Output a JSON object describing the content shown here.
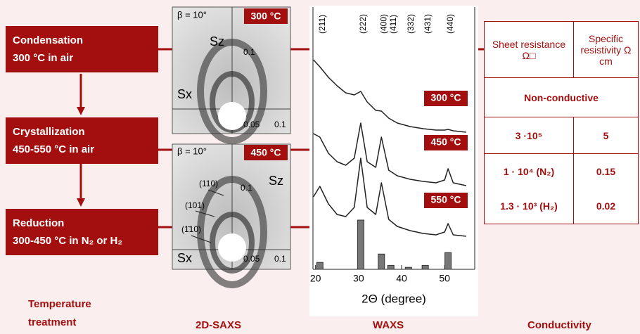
{
  "process": {
    "steps": [
      {
        "title": "Condensation",
        "condition": "300 °C in air"
      },
      {
        "title": "Crystallization",
        "condition": "450-550 °C in air"
      },
      {
        "title": "Reduction",
        "condition": "300-450 °C in N₂ or H₂"
      }
    ]
  },
  "saxs": {
    "panels": [
      {
        "beta": "β = 10°",
        "temperature": "300 °C",
        "sz": "Sz",
        "sx": "Sx",
        "tick_z": "0.1",
        "tick_x1": "0.05",
        "tick_x2": "0.1"
      },
      {
        "beta": "β = 10°",
        "temperature": "450 °C",
        "sz": "Sz",
        "sx": "Sx",
        "tick_z": "0.1",
        "tick_x1": "0.05",
        "tick_x2": "0.1",
        "reflections": [
          "(110)",
          "(101)",
          "(1̄10)"
        ]
      }
    ]
  },
  "waxs": {
    "type": "line",
    "xlabel": "2Θ (degree)",
    "xlim": [
      19.4,
      57
    ],
    "xticks": [
      20,
      30,
      40,
      50
    ],
    "peaks": [
      {
        "x": 21,
        "label": "(211)",
        "intensity": 14
      },
      {
        "x": 30.5,
        "label": "(222)",
        "intensity": 100
      },
      {
        "x": 35.3,
        "label": "(400)",
        "intensity": 31
      },
      {
        "x": 37.5,
        "label": "(411)",
        "intensity": 8
      },
      {
        "x": 41.6,
        "label": "(332)",
        "intensity": 4
      },
      {
        "x": 45.5,
        "label": "(431)",
        "intensity": 8
      },
      {
        "x": 50.8,
        "label": "(440)",
        "intensity": 34
      }
    ],
    "x": [
      19.5,
      21,
      23,
      25,
      27,
      29,
      30.5,
      32,
      34,
      35.3,
      37,
      39,
      42,
      45,
      48,
      50,
      50.8,
      52,
      55
    ],
    "series": [
      {
        "name": "300 °C",
        "color": "#222222",
        "values": [
          105,
          95,
          80,
          68,
          58,
          55,
          60,
          45,
          33,
          32,
          22,
          15,
          10,
          7,
          5,
          5,
          6,
          4,
          2
        ]
      },
      {
        "name": "450 °C",
        "color": "#222222",
        "values": [
          80,
          75,
          52,
          40,
          35,
          45,
          95,
          40,
          32,
          75,
          28,
          20,
          15,
          12,
          10,
          14,
          30,
          10,
          6
        ]
      },
      {
        "name": "550 °C",
        "color": "#222222",
        "values": [
          70,
          85,
          60,
          45,
          42,
          55,
          125,
          55,
          45,
          90,
          38,
          28,
          22,
          18,
          16,
          20,
          32,
          16,
          14
        ]
      }
    ]
  },
  "table": {
    "header": [
      "Sheet resistance Ω□",
      "Specific resistivity Ω cm"
    ],
    "nonconductive": "Non-conductive",
    "rows": [
      [
        "3 ·10⁵",
        "5"
      ],
      [
        "1 · 10⁴ (N₂)",
        "0.15"
      ],
      [
        "1.3 · 10³ (H₂)",
        "0.02"
      ]
    ]
  },
  "footer": {
    "labels": [
      "Temperature treatment",
      "2D-SAXS",
      "WAXS",
      "Conductivity"
    ]
  }
}
